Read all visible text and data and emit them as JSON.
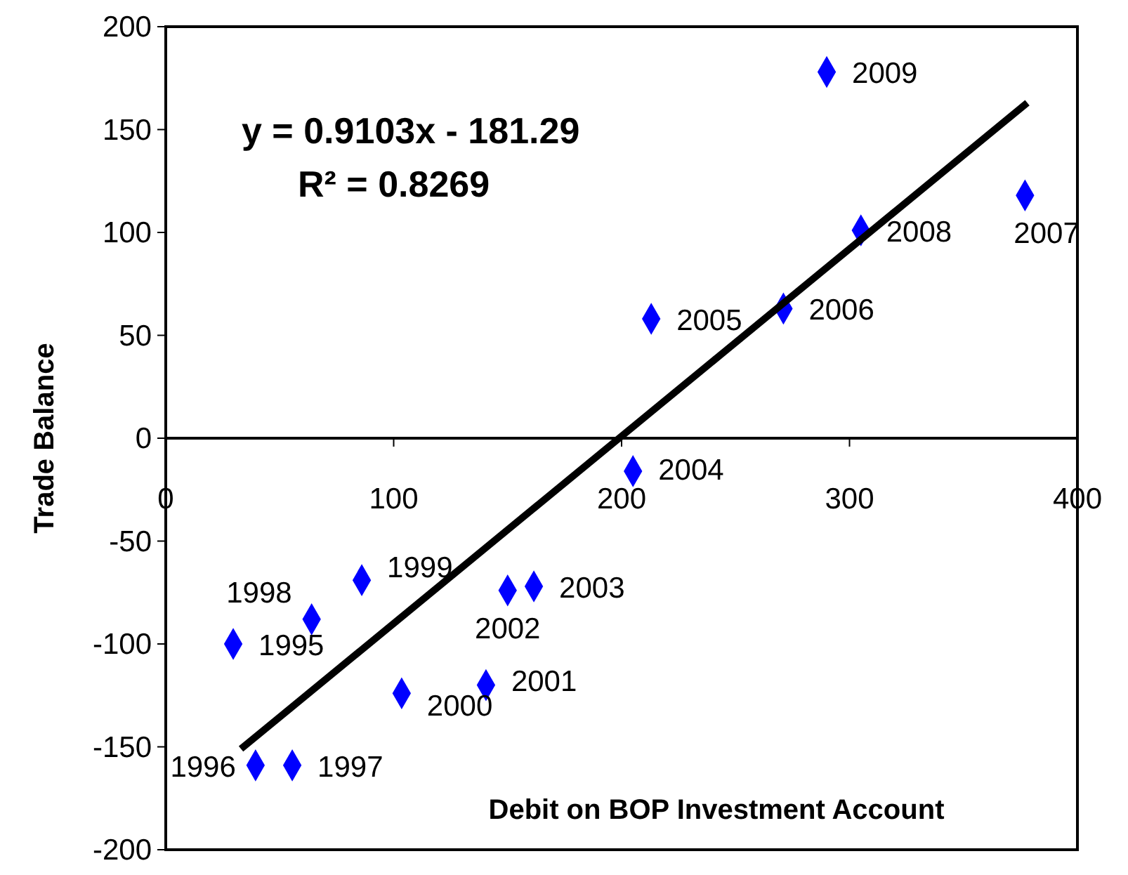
{
  "chart_data": {
    "type": "scatter",
    "xlabel": "Debit on BOP Investment Account",
    "ylabel": "Trade Balance",
    "xlim": [
      0,
      400
    ],
    "xticks": [
      0,
      100,
      200,
      300,
      400
    ],
    "ylim": [
      -200,
      200
    ],
    "yticks": [
      -200,
      -150,
      -100,
      -50,
      0,
      50,
      100,
      150,
      200
    ],
    "grid": false,
    "series": [
      {
        "marker": "diamond",
        "color": "#0000ff",
        "x": [
          29.6,
          39.4,
          55.5,
          64,
          86,
          103.5,
          140.5,
          150,
          161.5,
          205,
          213,
          271,
          377,
          305,
          290
        ],
        "values": [
          -100,
          -159,
          -159,
          -88,
          -69,
          -124,
          -120,
          -74,
          -72,
          -16,
          58,
          63,
          118,
          101,
          178
        ]
      },
      {
        "type": "line",
        "color": "#000000",
        "x": [
          33,
          378
        ],
        "values": [
          -151,
          163
        ]
      }
    ],
    "annotations": [
      "y = 0.9103x  - 181.29",
      "R² = 0.8269",
      {
        "text": "1995",
        "x": 29.6,
        "y": -100
      },
      {
        "text": "1996",
        "x": 39.4,
        "y": -159
      },
      {
        "text": "1997",
        "x": 55.5,
        "y": -159
      },
      {
        "text": "1998",
        "x": 64,
        "y": -88
      },
      {
        "text": "1999",
        "x": 86,
        "y": -69
      },
      {
        "text": "2000",
        "x": 103.5,
        "y": -124
      },
      {
        "text": "2001",
        "x": 140.5,
        "y": -120
      },
      {
        "text": "2002",
        "x": 150,
        "y": -74
      },
      {
        "text": "2003",
        "x": 161.5,
        "y": -72
      },
      {
        "text": "2004",
        "x": 205,
        "y": -16
      },
      {
        "text": "2005",
        "x": 213,
        "y": 58
      },
      {
        "text": "2006",
        "x": 271,
        "y": 63
      },
      {
        "text": "2007",
        "x": 377,
        "y": 118
      },
      {
        "text": "2008",
        "x": 305,
        "y": 101
      },
      {
        "text": "2009",
        "x": 290,
        "y": 178
      }
    ]
  }
}
